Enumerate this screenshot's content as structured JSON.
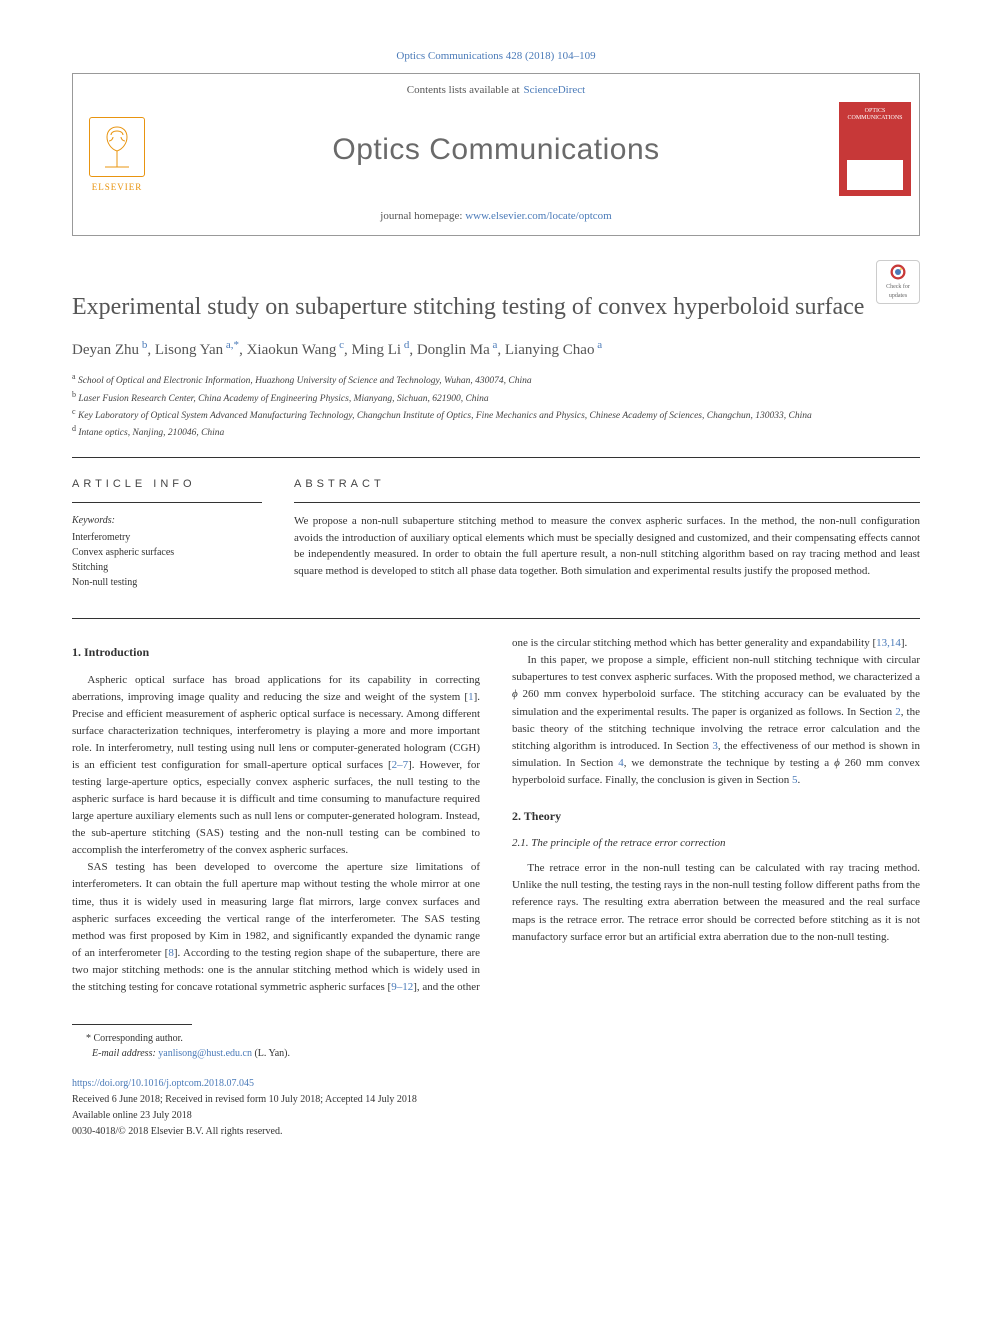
{
  "meta": {
    "citation": "Optics Communications 428 (2018) 104–109",
    "contents_prefix": "Contents lists available at",
    "contents_link": "ScienceDirect",
    "journal_name": "Optics Communications",
    "homepage_prefix": "journal homepage:",
    "homepage_url": "www.elsevier.com/locate/optcom",
    "publisher": "ELSEVIER",
    "cover_title": "OPTICS COMMUNICATIONS",
    "check_updates": "Check for updates"
  },
  "article": {
    "title": "Experimental study on subaperture stitching testing of convex hyperboloid surface",
    "authors_html": "Deyan Zhu<sup> b</sup>, Lisong Yan<sup> a,*</sup>, Xiaokun Wang<sup> c</sup>, Ming Li<sup> d</sup>, Donglin Ma<sup> a</sup>, Lianying Chao<sup> a</sup>",
    "affiliations": [
      {
        "tag": "a",
        "text": "School of Optical and Electronic Information, Huazhong University of Science and Technology, Wuhan, 430074, China"
      },
      {
        "tag": "b",
        "text": "Laser Fusion Research Center, China Academy of Engineering Physics, Mianyang, Sichuan, 621900, China"
      },
      {
        "tag": "c",
        "text": "Key Laboratory of Optical System Advanced Manufacturing Technology, Changchun Institute of Optics, Fine Mechanics and Physics, Chinese Academy of Sciences, Changchun, 130033, China"
      },
      {
        "tag": "d",
        "text": "Intane optics, Nanjing, 210046, China"
      }
    ]
  },
  "info": {
    "section_label": "ARTICLE INFO",
    "keywords_label": "Keywords:",
    "keywords": [
      "Interferometry",
      "Convex aspheric surfaces",
      "Stitching",
      "Non-null testing"
    ]
  },
  "abstract": {
    "section_label": "ABSTRACT",
    "text": "We propose a non-null subaperture stitching method to measure the convex aspheric surfaces. In the method, the non-null configuration avoids the introduction of auxiliary optical elements which must be specially designed and customized, and their compensating effects cannot be independently measured. In order to obtain the full aperture result, a non-null stitching algorithm based on ray tracing method and least square method is developed to stitch all phase data together. Both simulation and experimental results justify the proposed method."
  },
  "body": {
    "intro_heading": "1. Introduction",
    "intro_p1": "Aspheric optical surface has broad applications for its capability in correcting aberrations, improving image quality and reducing the size and weight of the system [1]. Precise and efficient measurement of aspheric optical surface is necessary. Among different surface characterization techniques, interferometry is playing a more and more important role. In interferometry, null testing using null lens or computer-generated hologram (CGH) is an efficient test configuration for small-aperture optical surfaces [2–7]. However, for testing large-aperture optics, especially convex aspheric surfaces, the null testing to the aspheric surface is hard because it is difficult and time consuming to manufacture required large aperture auxiliary elements such as null lens or computer-generated hologram. Instead, the sub-aperture stitching (SAS) testing and the non-null testing can be combined to accomplish the interferometry of the convex aspheric surfaces.",
    "intro_p2": "SAS testing has been developed to overcome the aperture size limitations of interferometers. It can obtain the full aperture map without testing the whole mirror at one time, thus it is widely used in measuring large flat mirrors, large convex surfaces and aspheric surfaces exceeding the vertical range of the interferometer. The SAS testing method was first proposed by Kim in 1982, and significantly expanded the dynamic range of an interferometer [8]. According to the testing region shape of the subaperture, there are two major stitching methods: one is the annular stitching method which is widely used in the stitching testing for concave rotational symmetric aspheric surfaces [9–12], and the other",
    "intro_p3": "one is the circular stitching method which has better generality and expandability [13,14].",
    "intro_p4": "In this paper, we propose a simple, efficient non-null stitching technique with circular subapertures to test convex aspheric surfaces. With the proposed method, we characterized a φ 260 mm convex hyperboloid surface. The stitching accuracy can be evaluated by the simulation and the experimental results. The paper is organized as follows. In Section 2, the basic theory of the stitching technique involving the retrace error calculation and the stitching algorithm is introduced. In Section 3, the effectiveness of our method is shown in simulation. In Section 4, we demonstrate the technique by testing a φ 260 mm convex hyperboloid surface. Finally, the conclusion is given in Section 5.",
    "theory_heading": "2. Theory",
    "theory_sub": "2.1. The principle of the retrace error correction",
    "theory_p1": "The retrace error in the non-null testing can be calculated with ray tracing method. Unlike the null testing, the testing rays in the non-null testing follow different paths from the reference rays. The resulting extra aberration between the measured and the real surface maps is the retrace error. The retrace error should be corrected before stitching as it is not manufactory surface error but an artificial extra aberration due to the non-null testing."
  },
  "footer": {
    "corr": "*  Corresponding author.",
    "email_label": "E-mail address:",
    "email": "yanlisong@hust.edu.cn",
    "email_name": "(L. Yan).",
    "doi": "https://doi.org/10.1016/j.optcom.2018.07.045",
    "history": "Received 6 June 2018; Received in revised form 10 July 2018; Accepted 14 July 2018",
    "available": "Available online 23 July 2018",
    "copyright": "0030-4018/© 2018 Elsevier B.V. All rights reserved."
  },
  "colors": {
    "link": "#4a7ab8",
    "elsevier": "#e8940f",
    "cover": "#c73838",
    "text": "#333333",
    "grey_title": "#555555"
  }
}
